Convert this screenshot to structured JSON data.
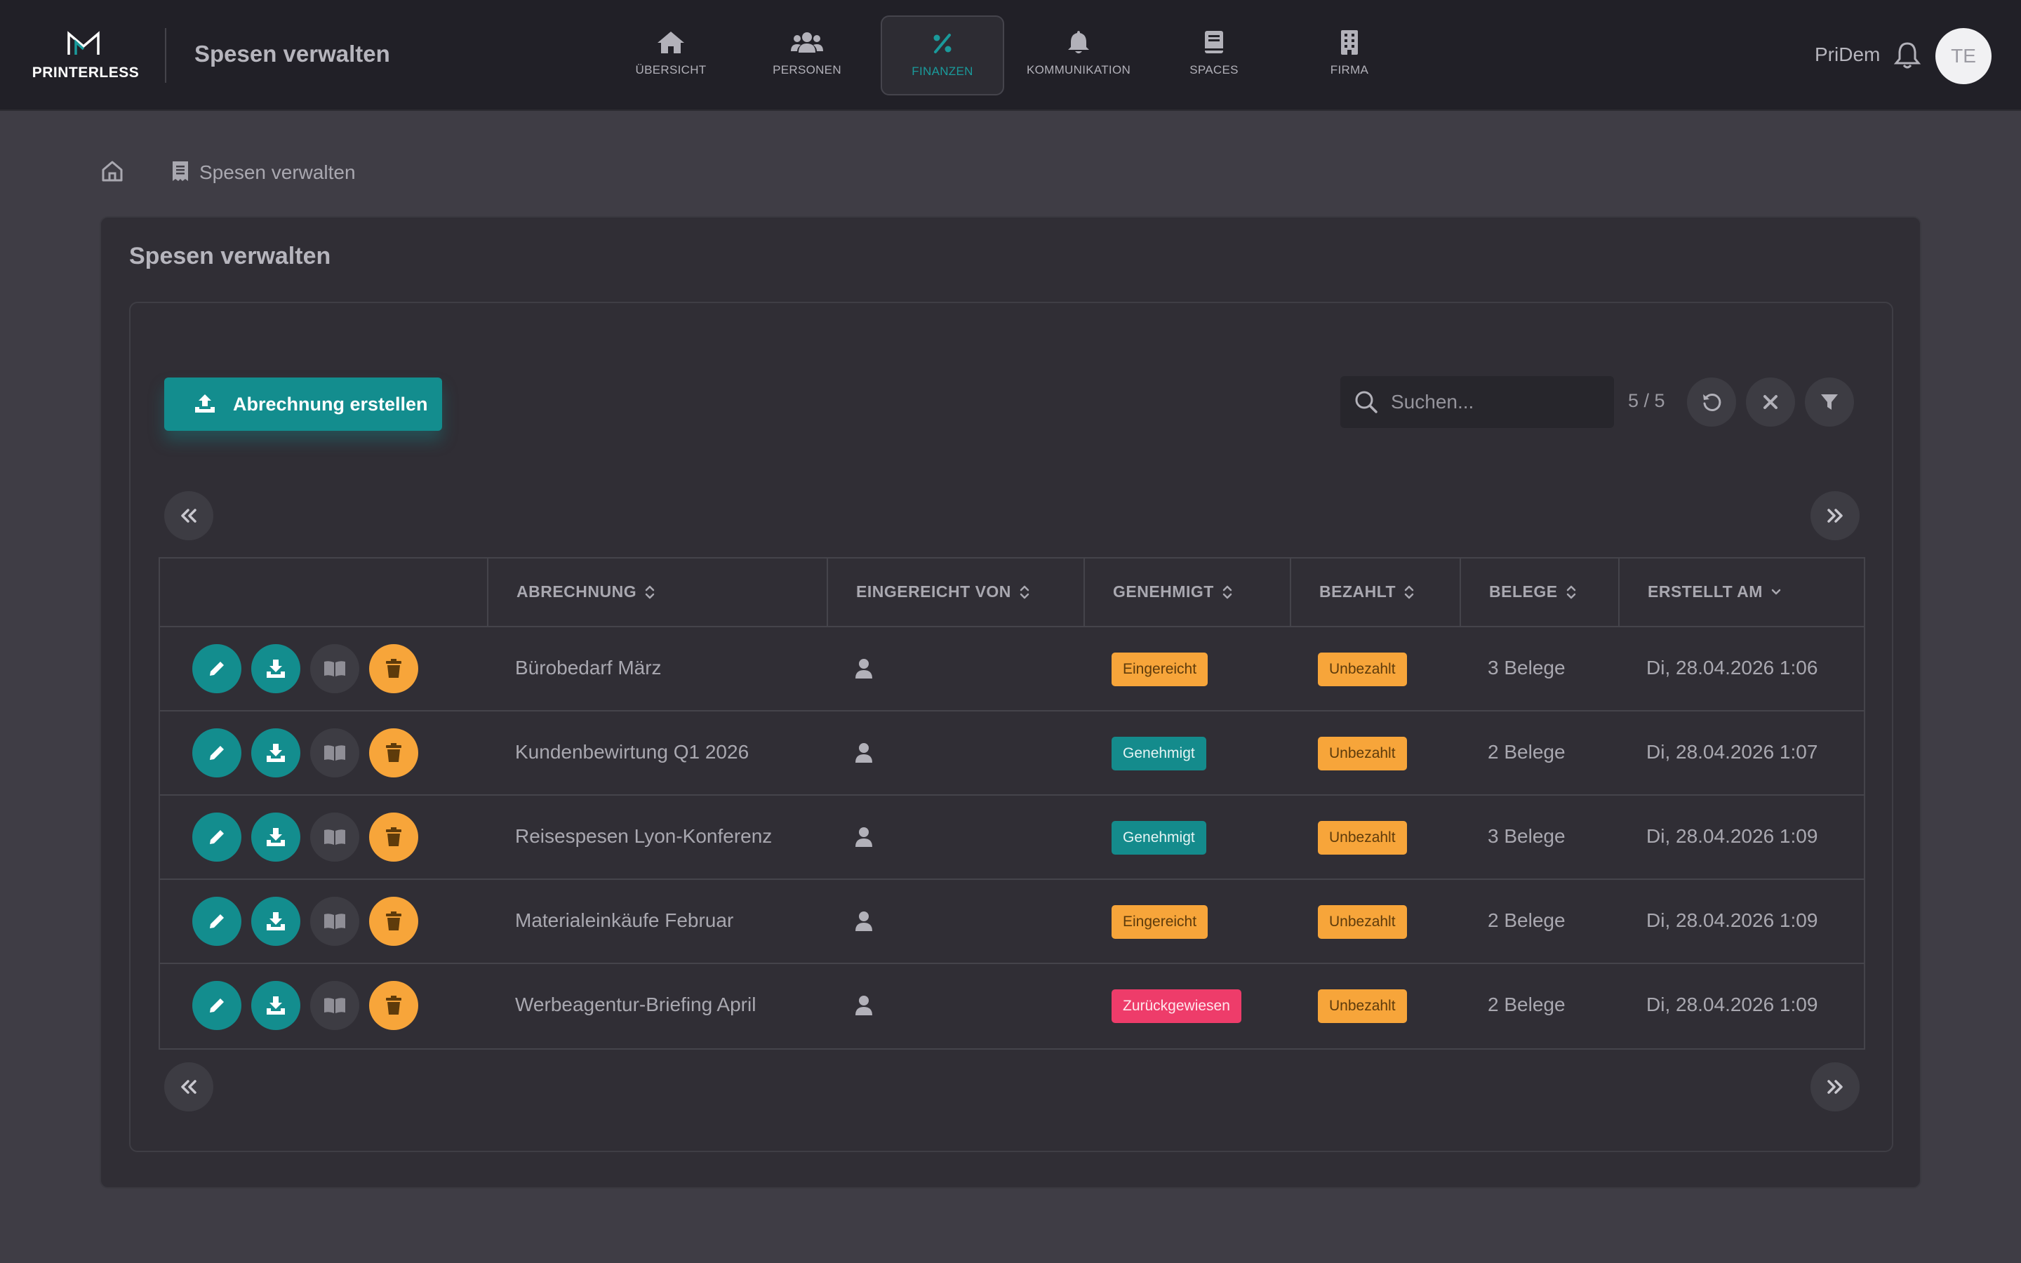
{
  "header": {
    "logo_text": "PRINTERLESS",
    "app_title": "Spesen verwalten",
    "user_name": "PriDem",
    "avatar_initials": "TE",
    "nav": [
      {
        "label": "ÜBERSICHT",
        "icon": "home-icon"
      },
      {
        "label": "PERSONEN",
        "icon": "users-icon"
      },
      {
        "label": "FINANZEN",
        "icon": "percent-icon",
        "active": true
      },
      {
        "label": "KOMMUNIKATION",
        "icon": "bell-icon"
      },
      {
        "label": "SPACES",
        "icon": "book-icon"
      },
      {
        "label": "FIRMA",
        "icon": "building-icon"
      }
    ]
  },
  "breadcrumb": {
    "current": "Spesen verwalten"
  },
  "card": {
    "title": "Spesen verwalten"
  },
  "toolbar": {
    "create_label": "Abrechnung erstellen",
    "search_placeholder": "Suchen...",
    "counter": "5 / 5"
  },
  "table": {
    "columns": [
      "",
      "ABRECHNUNG",
      "EINGEREICHT VON",
      "GENEHMIGT",
      "BEZAHLT",
      "BELEGE",
      "ERSTELLT AM"
    ],
    "rows": [
      {
        "name": "Bürobedarf März",
        "approved": "Eingereicht",
        "approved_state": "eingereicht",
        "paid": "Unbezahlt",
        "receipts": "3 Belege",
        "created": "Di, 28.04.2026 1:06"
      },
      {
        "name": "Kundenbewirtung Q1 2026",
        "approved": "Genehmigt",
        "approved_state": "genehmigt",
        "paid": "Unbezahlt",
        "receipts": "2 Belege",
        "created": "Di, 28.04.2026 1:07"
      },
      {
        "name": "Reisespesen Lyon-Konferenz",
        "approved": "Genehmigt",
        "approved_state": "genehmigt",
        "paid": "Unbezahlt",
        "receipts": "3 Belege",
        "created": "Di, 28.04.2026 1:09"
      },
      {
        "name": "Materialeinkäufe Februar",
        "approved": "Eingereicht",
        "approved_state": "eingereicht",
        "paid": "Unbezahlt",
        "receipts": "2 Belege",
        "created": "Di, 28.04.2026 1:09"
      },
      {
        "name": "Werbeagentur-Briefing April",
        "approved": "Zurückgewiesen",
        "approved_state": "zurueck",
        "paid": "Unbezahlt",
        "receipts": "2 Belege",
        "created": "Di, 28.04.2026 1:09"
      }
    ]
  },
  "colors": {
    "accent": "#138d8e",
    "warning": "#f7a53a",
    "danger": "#ee3c6a",
    "topbar": "#212027",
    "background": "#3f3d45"
  }
}
